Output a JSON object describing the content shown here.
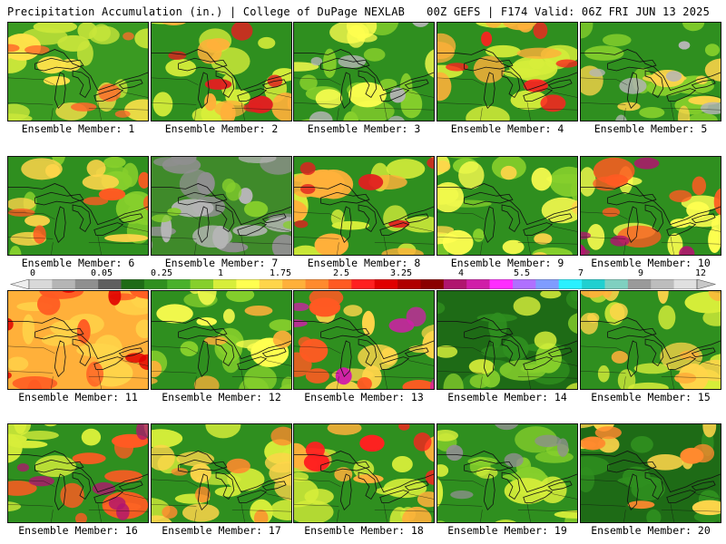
{
  "header": {
    "title": "Precipitation Accumulation (in.) | College of DuPage NEXLAB",
    "run_info": "00Z GEFS | F174 Valid: 06Z FRI JUN 13 2025"
  },
  "colorbar": {
    "tick_labels": [
      "0",
      "0.05",
      "0.25",
      "1",
      "1.75",
      "2.5",
      "3.25",
      "4",
      "5.5",
      "7",
      "9",
      "12"
    ],
    "colors": [
      "#d9d9d9",
      "#b5b5b5",
      "#8f8f8f",
      "#5f5f5f",
      "#1e6b16",
      "#2f8f1f",
      "#49b12b",
      "#86cf2c",
      "#d7ee3a",
      "#ffff50",
      "#ffd54a",
      "#ffb03a",
      "#ff8a2e",
      "#ff5a22",
      "#ff2020",
      "#e00000",
      "#b00000",
      "#8a0000",
      "#b0156e",
      "#d01ea8",
      "#ff2dff",
      "#b070ff",
      "#7f9cff",
      "#29f0ff",
      "#20d0d0",
      "#7fd0c0",
      "#9a9a9a",
      "#bdbdbd",
      "#e0e0e0"
    ]
  },
  "panels": [
    {
      "label": "Ensemble Member: 1",
      "palette": [
        "#3a9a22",
        "#c9e63a",
        "#ffe24a",
        "#ff6a2a"
      ]
    },
    {
      "label": "Ensemble Member: 2",
      "palette": [
        "#2f8f1f",
        "#d7ee3a",
        "#ffb03a",
        "#e02020"
      ]
    },
    {
      "label": "Ensemble Member: 3",
      "palette": [
        "#2f8f1f",
        "#86cf2c",
        "#ffff50",
        "#b5b5b5"
      ]
    },
    {
      "label": "Ensemble Member: 4",
      "palette": [
        "#2f8f1f",
        "#d7ee3a",
        "#ffb03a",
        "#ff2020"
      ]
    },
    {
      "label": "Ensemble Member: 5",
      "palette": [
        "#2f8f1f",
        "#86cf2c",
        "#ffd54a",
        "#b5b5b5"
      ]
    },
    {
      "label": "Ensemble Member: 6",
      "palette": [
        "#2f8f1f",
        "#86cf2c",
        "#ffd54a",
        "#ff5a22"
      ]
    },
    {
      "label": "Ensemble Member: 7",
      "palette": [
        "#3f8a2a",
        "#8f8f8f",
        "#b5b5b5",
        "#86cf2c"
      ]
    },
    {
      "label": "Ensemble Member: 8",
      "palette": [
        "#2f8f1f",
        "#d7ee3a",
        "#ffb03a",
        "#e02020"
      ]
    },
    {
      "label": "Ensemble Member: 9",
      "palette": [
        "#2f8f1f",
        "#86cf2c",
        "#ffff50",
        "#ffd54a"
      ]
    },
    {
      "label": "Ensemble Member: 10",
      "palette": [
        "#2f8f1f",
        "#ffff50",
        "#ff5a22",
        "#b0156e"
      ]
    },
    {
      "label": "Ensemble Member: 11",
      "palette": [
        "#ffb03a",
        "#ffd54a",
        "#ff5a22",
        "#e00000"
      ]
    },
    {
      "label": "Ensemble Member: 12",
      "palette": [
        "#2f8f1f",
        "#86cf2c",
        "#ffff50",
        "#ffb03a"
      ]
    },
    {
      "label": "Ensemble Member: 13",
      "palette": [
        "#2f8f1f",
        "#ffd54a",
        "#ff5a22",
        "#d01ea8"
      ]
    },
    {
      "label": "Ensemble Member: 14",
      "palette": [
        "#1e6b16",
        "#2f8f1f",
        "#86cf2c",
        "#d7ee3a"
      ]
    },
    {
      "label": "Ensemble Member: 15",
      "palette": [
        "#2f8f1f",
        "#d7ee3a",
        "#ffd54a",
        "#ffb03a"
      ]
    },
    {
      "label": "Ensemble Member: 16",
      "palette": [
        "#2f8f1f",
        "#d7ee3a",
        "#ff5a22",
        "#b0156e"
      ]
    },
    {
      "label": "Ensemble Member: 17",
      "palette": [
        "#2f8f1f",
        "#d7ee3a",
        "#ffd54a",
        "#ff8a2e"
      ]
    },
    {
      "label": "Ensemble Member: 18",
      "palette": [
        "#2f8f1f",
        "#d7ee3a",
        "#ffb03a",
        "#ff2020"
      ]
    },
    {
      "label": "Ensemble Member: 19",
      "palette": [
        "#2f8f1f",
        "#86cf2c",
        "#d7ee3a",
        "#8f8f8f"
      ]
    },
    {
      "label": "Ensemble Member: 20",
      "palette": [
        "#1e6b16",
        "#2f8f1f",
        "#ffd54a",
        "#ff8a2e"
      ]
    }
  ]
}
